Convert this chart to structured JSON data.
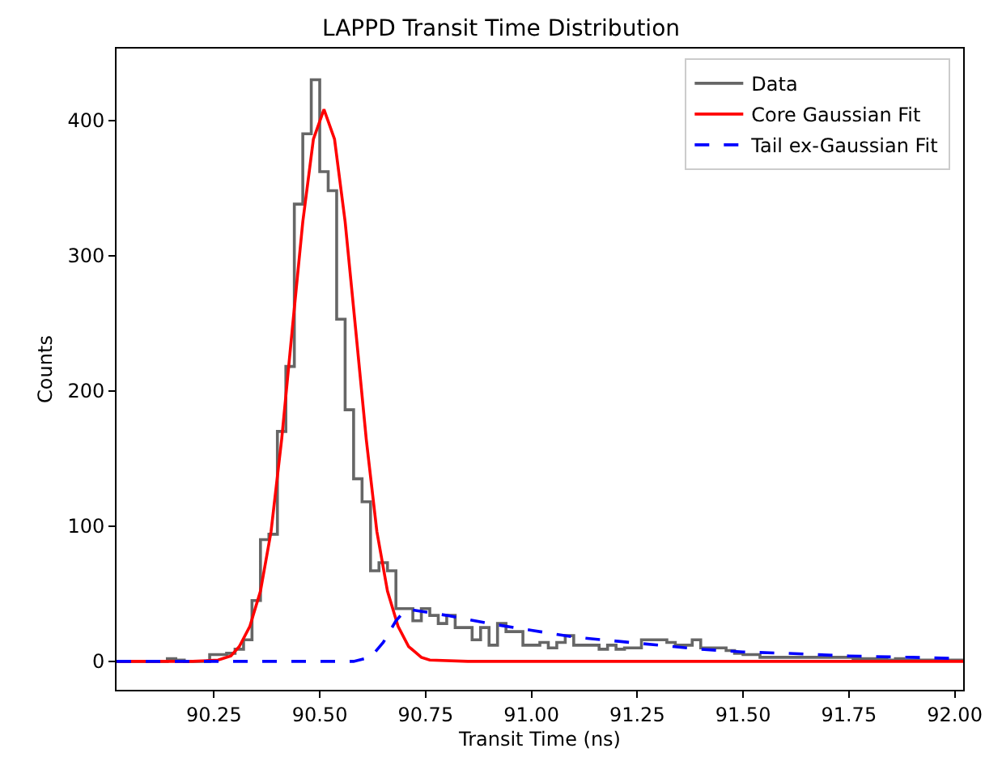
{
  "chart_data": {
    "type": "histogram",
    "title": "LAPPD Transit Time Distribution",
    "xlabel": "Transit Time (ns)",
    "ylabel": "Counts",
    "xlim": [
      90.02,
      92.02
    ],
    "ylim": [
      -21,
      453
    ],
    "xticks": [
      {
        "value": 90.25,
        "label": "90.25"
      },
      {
        "value": 90.5,
        "label": "90.50"
      },
      {
        "value": 90.75,
        "label": "90.75"
      },
      {
        "value": 91.0,
        "label": "91.00"
      },
      {
        "value": 91.25,
        "label": "91.25"
      },
      {
        "value": 91.5,
        "label": "91.50"
      },
      {
        "value": 91.75,
        "label": "91.75"
      },
      {
        "value": 92.0,
        "label": "92.00"
      }
    ],
    "yticks": [
      0,
      100,
      200,
      300,
      400
    ],
    "legend": "top right",
    "series": [
      {
        "name": "Data",
        "color": "#666666",
        "bins": [
          90.02,
          90.04,
          90.06,
          90.08,
          90.1,
          90.12,
          90.14,
          90.16,
          90.18,
          90.2,
          90.22,
          90.24,
          90.26,
          90.28,
          90.3,
          90.32,
          90.34,
          90.36,
          90.38,
          90.4,
          90.42,
          90.44,
          90.46,
          90.48,
          90.5,
          90.52,
          90.54,
          90.56,
          90.58,
          90.6,
          90.62,
          90.64,
          90.66,
          90.68,
          90.7,
          90.72,
          90.74,
          90.76,
          90.78,
          90.8,
          90.82,
          90.84,
          90.86,
          90.88,
          90.9,
          90.92,
          90.94,
          90.96,
          90.98,
          91.0,
          91.02,
          91.04,
          91.06,
          91.08,
          91.1,
          91.12,
          91.14,
          91.16,
          91.18,
          91.2,
          91.22,
          91.24,
          91.26,
          91.28,
          91.3,
          91.32,
          91.34,
          91.36,
          91.38,
          91.4,
          91.42,
          91.44,
          91.46,
          91.48,
          91.5,
          91.52,
          91.54,
          91.56,
          91.58,
          91.6,
          91.62,
          91.64,
          91.66,
          91.68,
          91.7,
          91.72,
          91.74,
          91.76,
          91.78,
          91.8,
          91.82,
          91.84,
          91.86,
          91.88,
          91.9,
          91.92,
          91.94,
          91.96,
          91.98,
          92.0,
          92.02
        ],
        "values": [
          0,
          0,
          0,
          0,
          0,
          0,
          2,
          1,
          0,
          0,
          0,
          5,
          5,
          6,
          9,
          16,
          45,
          90,
          94,
          170,
          218,
          338,
          390,
          430,
          362,
          348,
          253,
          186,
          135,
          118,
          67,
          73,
          67,
          39,
          39,
          30,
          39,
          34,
          28,
          34,
          25,
          25,
          16,
          25,
          12,
          28,
          22,
          22,
          12,
          12,
          14,
          10,
          14,
          19,
          12,
          12,
          12,
          9,
          12,
          9,
          10,
          10,
          16,
          16,
          16,
          14,
          12,
          12,
          16,
          10,
          10,
          10,
          8,
          6,
          5,
          5,
          3,
          3,
          3,
          3,
          3,
          3,
          3,
          3,
          3,
          3,
          3,
          2,
          2,
          2,
          2,
          1,
          2,
          1,
          1,
          1,
          1,
          1,
          1,
          1
        ]
      },
      {
        "name": "Core Gaussian Fit",
        "type": "line",
        "color": "#ff0000",
        "line_style": "solid",
        "x": [
          90.02,
          90.2,
          90.26,
          90.29,
          90.31,
          90.335,
          90.36,
          90.385,
          90.41,
          90.435,
          90.46,
          90.485,
          90.51,
          90.535,
          90.56,
          90.585,
          90.61,
          90.635,
          90.66,
          90.685,
          90.71,
          90.74,
          90.76,
          90.85,
          92.02
        ],
        "values": [
          0,
          0,
          1,
          4,
          11,
          26,
          52,
          96,
          164,
          245,
          325,
          386,
          408,
          386,
          325,
          245,
          164,
          96,
          52,
          26,
          11,
          3,
          1,
          0,
          0
        ]
      },
      {
        "name": "Tail ex-Gaussian Fit",
        "type": "line",
        "color": "#0000ff",
        "line_style": "dashed",
        "x": [
          90.02,
          90.58,
          90.62,
          90.65,
          90.68,
          90.7,
          90.72,
          90.8,
          90.9,
          91.0,
          91.1,
          91.2,
          91.3,
          91.4,
          91.5,
          91.6,
          91.75,
          91.9,
          92.02
        ],
        "values": [
          0,
          0,
          3,
          14,
          30,
          37,
          38,
          34,
          28,
          23,
          18,
          15,
          12,
          9,
          7,
          6,
          4,
          3,
          2
        ]
      }
    ]
  }
}
